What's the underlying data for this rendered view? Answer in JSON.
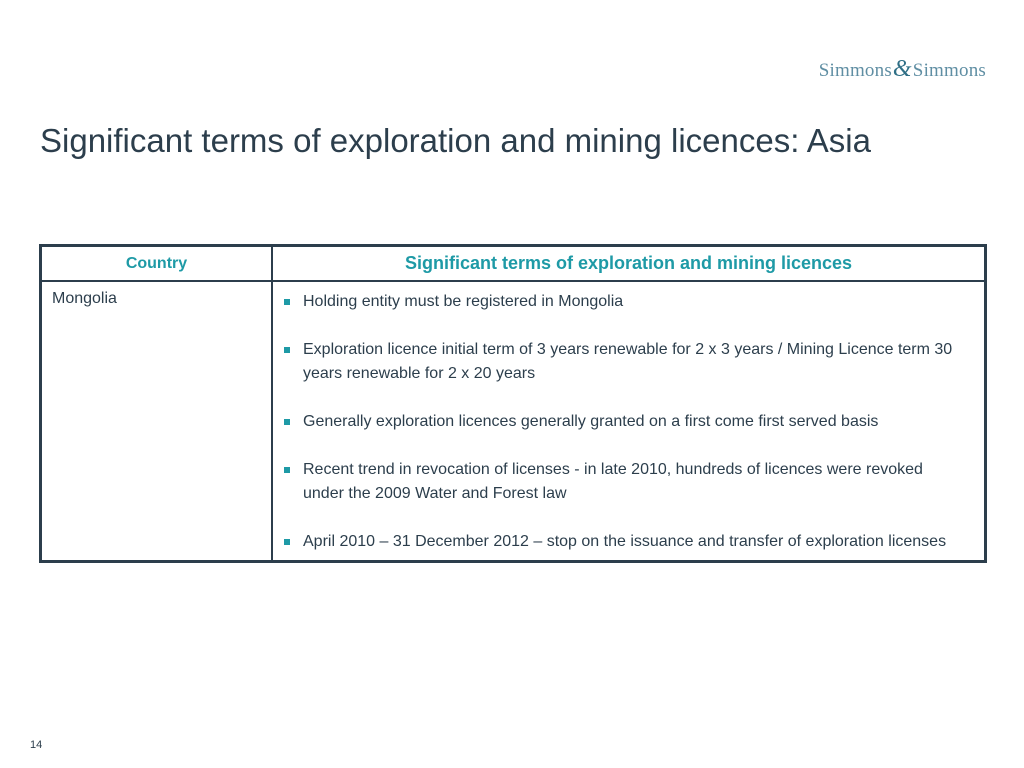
{
  "logo": {
    "left": "Simmons",
    "amp": "&",
    "right": "Simmons"
  },
  "slide": {
    "title": "Significant terms of exploration and mining licences: Asia",
    "page_number": "14"
  },
  "table": {
    "headers": {
      "country": "Country",
      "terms": "Significant terms of exploration and mining licences"
    },
    "rows": [
      {
        "country": "Mongolia",
        "terms": [
          "Holding entity must be registered in Mongolia",
          "Exploration licence initial term of 3 years renewable for 2 x 3 years / Mining Licence term 30 years renewable for 2 x 20 years",
          "Generally exploration licences generally granted on a first come first served basis",
          "Recent trend in revocation of licenses  - in late 2010, hundreds of licences were revoked under the 2009 Water and Forest law",
          "April 2010 – 31 December 2012 – stop on the issuance and transfer of exploration licenses"
        ]
      }
    ]
  },
  "colors": {
    "accent": "#1e9aa6",
    "text": "#2c3e4c",
    "border": "#2c3e4c",
    "logo": "#5f8ea3"
  },
  "icons": {
    "bullet": "square-bullet-icon"
  }
}
